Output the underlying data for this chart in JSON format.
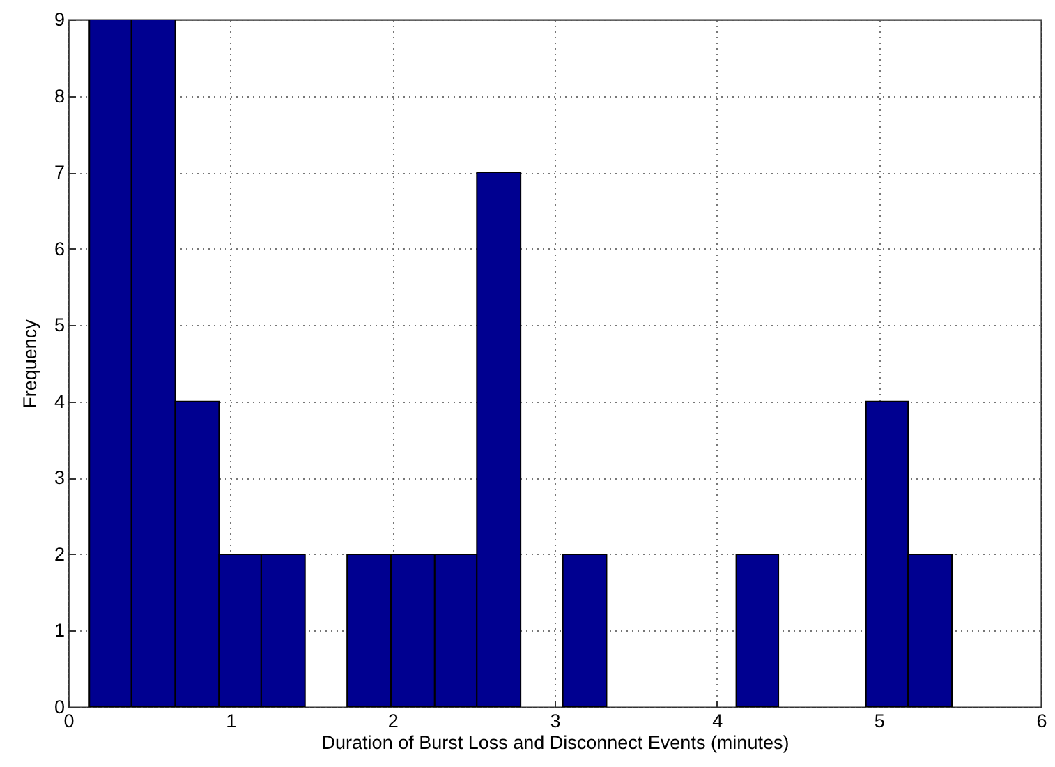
{
  "chart_data": {
    "type": "histogram",
    "xlabel": "Duration of Burst Loss and Disconnect Events (minutes)",
    "ylabel": "Frequency",
    "bins": [
      0.13,
      0.39,
      0.66,
      0.93,
      1.19,
      1.46,
      1.72,
      1.99,
      2.26,
      2.52,
      2.79,
      3.05,
      3.32,
      4.12,
      4.38,
      4.92,
      5.18,
      5.45
    ],
    "values": [
      9,
      9,
      4,
      2,
      2,
      0,
      2,
      2,
      2,
      7,
      0,
      2,
      0,
      2,
      0,
      4,
      2
    ],
    "color": "#000090",
    "xlim": [
      0,
      6
    ],
    "ylim": [
      0,
      9
    ],
    "xticks": [
      0,
      1,
      2,
      3,
      4,
      5,
      6
    ],
    "yticks": [
      0,
      1,
      2,
      3,
      4,
      5,
      6,
      7,
      8,
      9
    ],
    "grid": true
  }
}
